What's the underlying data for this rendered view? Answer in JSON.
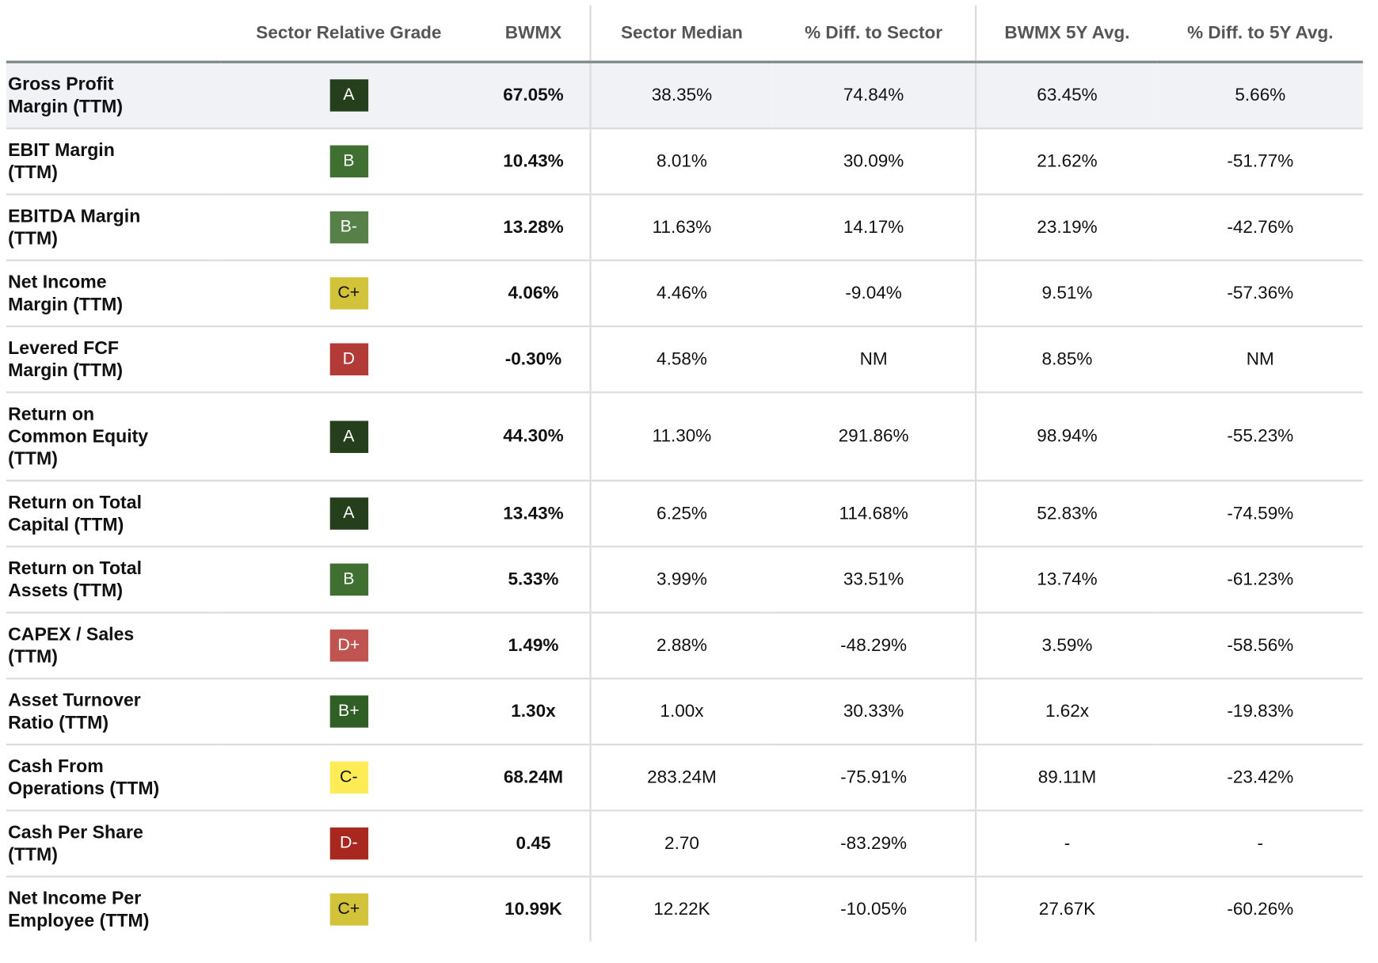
{
  "table": {
    "headers": [
      "",
      "Sector Relative Grade",
      "BWMX",
      "Sector Median",
      "% Diff. to Sector",
      "BWMX 5Y Avg.",
      "% Diff. to 5Y Avg."
    ],
    "grade_colors": {
      "A": {
        "bg": "#253f1d",
        "fg": "#ffffff"
      },
      "B+": {
        "bg": "#2f5f24",
        "fg": "#ffffff"
      },
      "B": {
        "bg": "#3f6f31",
        "fg": "#ffffff"
      },
      "B-": {
        "bg": "#578048",
        "fg": "#ffffff"
      },
      "C+": {
        "bg": "#d3c33a",
        "fg": "#111111"
      },
      "C-": {
        "bg": "#fdec55",
        "fg": "#111111"
      },
      "D+": {
        "bg": "#c05450",
        "fg": "#ffffff"
      },
      "D": {
        "bg": "#b23b37",
        "fg": "#ffffff"
      },
      "D-": {
        "bg": "#a8271f",
        "fg": "#ffffff"
      }
    },
    "rows": [
      {
        "label": "Gross Profit Margin (TTM)",
        "label_lines": [
          "Gross Profit",
          "Margin (TTM)"
        ],
        "grade": "A",
        "bwmx": "67.05%",
        "sector_median": "38.35%",
        "diff_sector": "74.84%",
        "avg_5y": "63.45%",
        "diff_5y": "5.66%"
      },
      {
        "label": "EBIT Margin (TTM)",
        "label_lines": [
          "EBIT Margin",
          "(TTM)"
        ],
        "grade": "B",
        "bwmx": "10.43%",
        "sector_median": "8.01%",
        "diff_sector": "30.09%",
        "avg_5y": "21.62%",
        "diff_5y": "-51.77%"
      },
      {
        "label": "EBITDA Margin (TTM)",
        "label_lines": [
          "EBITDA Margin",
          "(TTM)"
        ],
        "grade": "B-",
        "bwmx": "13.28%",
        "sector_median": "11.63%",
        "diff_sector": "14.17%",
        "avg_5y": "23.19%",
        "diff_5y": "-42.76%"
      },
      {
        "label": "Net Income Margin (TTM)",
        "label_lines": [
          "Net Income",
          "Margin (TTM)"
        ],
        "grade": "C+",
        "bwmx": "4.06%",
        "sector_median": "4.46%",
        "diff_sector": "-9.04%",
        "avg_5y": "9.51%",
        "diff_5y": "-57.36%"
      },
      {
        "label": "Levered FCF Margin (TTM)",
        "label_lines": [
          "Levered FCF",
          "Margin (TTM)"
        ],
        "grade": "D",
        "bwmx": "-0.30%",
        "sector_median": "4.58%",
        "diff_sector": "NM",
        "avg_5y": "8.85%",
        "diff_5y": "NM"
      },
      {
        "label": "Return on Common Equity (TTM)",
        "label_lines": [
          "Return on",
          "Common Equity",
          "(TTM)"
        ],
        "grade": "A",
        "bwmx": "44.30%",
        "sector_median": "11.30%",
        "diff_sector": "291.86%",
        "avg_5y": "98.94%",
        "diff_5y": "-55.23%"
      },
      {
        "label": "Return on Total Capital (TTM)",
        "label_lines": [
          "Return on Total",
          "Capital (TTM)"
        ],
        "grade": "A",
        "bwmx": "13.43%",
        "sector_median": "6.25%",
        "diff_sector": "114.68%",
        "avg_5y": "52.83%",
        "diff_5y": "-74.59%"
      },
      {
        "label": "Return on Total Assets (TTM)",
        "label_lines": [
          "Return on Total",
          "Assets (TTM)"
        ],
        "grade": "B",
        "bwmx": "5.33%",
        "sector_median": "3.99%",
        "diff_sector": "33.51%",
        "avg_5y": "13.74%",
        "diff_5y": "-61.23%"
      },
      {
        "label": "CAPEX / Sales (TTM)",
        "label_lines": [
          "CAPEX / Sales",
          "(TTM)"
        ],
        "grade": "D+",
        "bwmx": "1.49%",
        "sector_median": "2.88%",
        "diff_sector": "-48.29%",
        "avg_5y": "3.59%",
        "diff_5y": "-58.56%"
      },
      {
        "label": "Asset Turnover Ratio (TTM)",
        "label_lines": [
          "Asset Turnover",
          "Ratio (TTM)"
        ],
        "grade": "B+",
        "bwmx": "1.30x",
        "sector_median": "1.00x",
        "diff_sector": "30.33%",
        "avg_5y": "1.62x",
        "diff_5y": "-19.83%"
      },
      {
        "label": "Cash From Operations (TTM)",
        "label_lines": [
          "Cash From",
          "Operations (TTM)"
        ],
        "grade": "C-",
        "bwmx": "68.24M",
        "sector_median": "283.24M",
        "diff_sector": "-75.91%",
        "avg_5y": "89.11M",
        "diff_5y": "-23.42%"
      },
      {
        "label": "Cash Per Share (TTM)",
        "label_lines": [
          "Cash Per Share",
          "(TTM)"
        ],
        "grade": "D-",
        "bwmx": "0.45",
        "sector_median": "2.70",
        "diff_sector": "-83.29%",
        "avg_5y": "-",
        "diff_5y": "-"
      },
      {
        "label": "Net Income Per Employee (TTM)",
        "label_lines": [
          "Net Income Per",
          "Employee (TTM)"
        ],
        "grade": "C+",
        "bwmx": "10.99K",
        "sector_median": "12.22K",
        "diff_sector": "-10.05%",
        "avg_5y": "27.67K",
        "diff_5y": "-60.26%"
      }
    ]
  }
}
